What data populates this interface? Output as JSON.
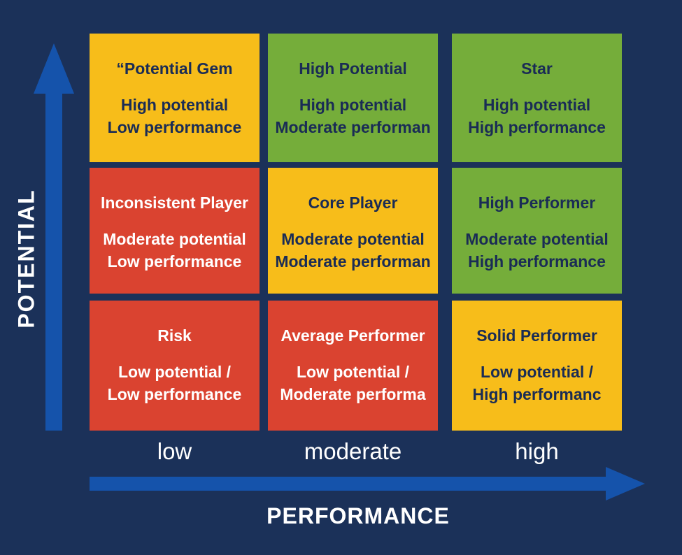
{
  "colors": {
    "background": "#1b3159",
    "arrow": "#1553ab",
    "red": "#da4330",
    "yellow": "#f7bd1a",
    "green": "#75ad3a",
    "text_light": "#ffffff",
    "text_dark": "#1a2c55"
  },
  "axes": {
    "y_title": "POTENTIAL",
    "x_title": "PERFORMANCE",
    "x_levels": [
      "low",
      "moderate",
      "high"
    ]
  },
  "cells": [
    {
      "row": 0,
      "col": 0,
      "color": "yellow",
      "title": "“Potential Gem",
      "line1": "High potential",
      "line2": "Low performance"
    },
    {
      "row": 0,
      "col": 1,
      "color": "green",
      "title": "High Potential",
      "line1": "High potential",
      "line2": "Moderate performan"
    },
    {
      "row": 0,
      "col": 2,
      "color": "green",
      "title": "Star",
      "line1": "High potential",
      "line2": "High performance"
    },
    {
      "row": 1,
      "col": 0,
      "color": "red",
      "title": "Inconsistent Player",
      "line1": "Moderate potential",
      "line2": "Low performance"
    },
    {
      "row": 1,
      "col": 1,
      "color": "yellow",
      "title": "Core Player",
      "line1": "Moderate potential",
      "line2": "Moderate performan"
    },
    {
      "row": 1,
      "col": 2,
      "color": "green",
      "title": "High Performer",
      "line1": "Moderate potential",
      "line2": "High performance"
    },
    {
      "row": 2,
      "col": 0,
      "color": "red",
      "title": "Risk",
      "line1": "Low potential /",
      "line2": "Low performance"
    },
    {
      "row": 2,
      "col": 1,
      "color": "red",
      "title": "Average Performer",
      "line1": "Low potential /",
      "line2": "Moderate performa"
    },
    {
      "row": 2,
      "col": 2,
      "color": "yellow",
      "title": "Solid Performer",
      "line1": "Low potential /",
      "line2": "High performanc"
    }
  ]
}
